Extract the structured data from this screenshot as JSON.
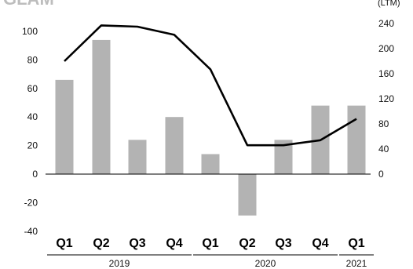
{
  "chart_data": {
    "type": "bar",
    "title_fragment": "GLAM",
    "right_axis_label": "(LTM)",
    "categories": [
      "Q1",
      "Q2",
      "Q3",
      "Q4",
      "Q1",
      "Q2",
      "Q3",
      "Q4",
      "Q1"
    ],
    "groups": [
      {
        "label": "2019",
        "span": [
          0,
          3
        ]
      },
      {
        "label": "2020",
        "span": [
          4,
          7
        ]
      },
      {
        "label": "2021",
        "span": [
          8,
          8
        ]
      }
    ],
    "series": [
      {
        "axis": "left",
        "type": "bar",
        "values": [
          66,
          94,
          24,
          40,
          14,
          -29,
          24,
          48,
          48
        ]
      },
      {
        "axis": "right",
        "type": "line",
        "values": [
          180,
          237,
          235,
          222,
          167,
          46,
          46,
          54,
          88
        ]
      }
    ],
    "left_axis": {
      "ylim": [
        -40,
        100
      ],
      "ticks": [
        -40,
        -20,
        0,
        20,
        40,
        60,
        80,
        100
      ]
    },
    "right_axis": {
      "ylim": [
        0,
        240
      ],
      "ticks": [
        0,
        40,
        80,
        120,
        160,
        200,
        240
      ]
    },
    "colors": {
      "bar": "#b3b3b3",
      "line": "#000000",
      "axis": "#000000"
    },
    "grid": false
  }
}
